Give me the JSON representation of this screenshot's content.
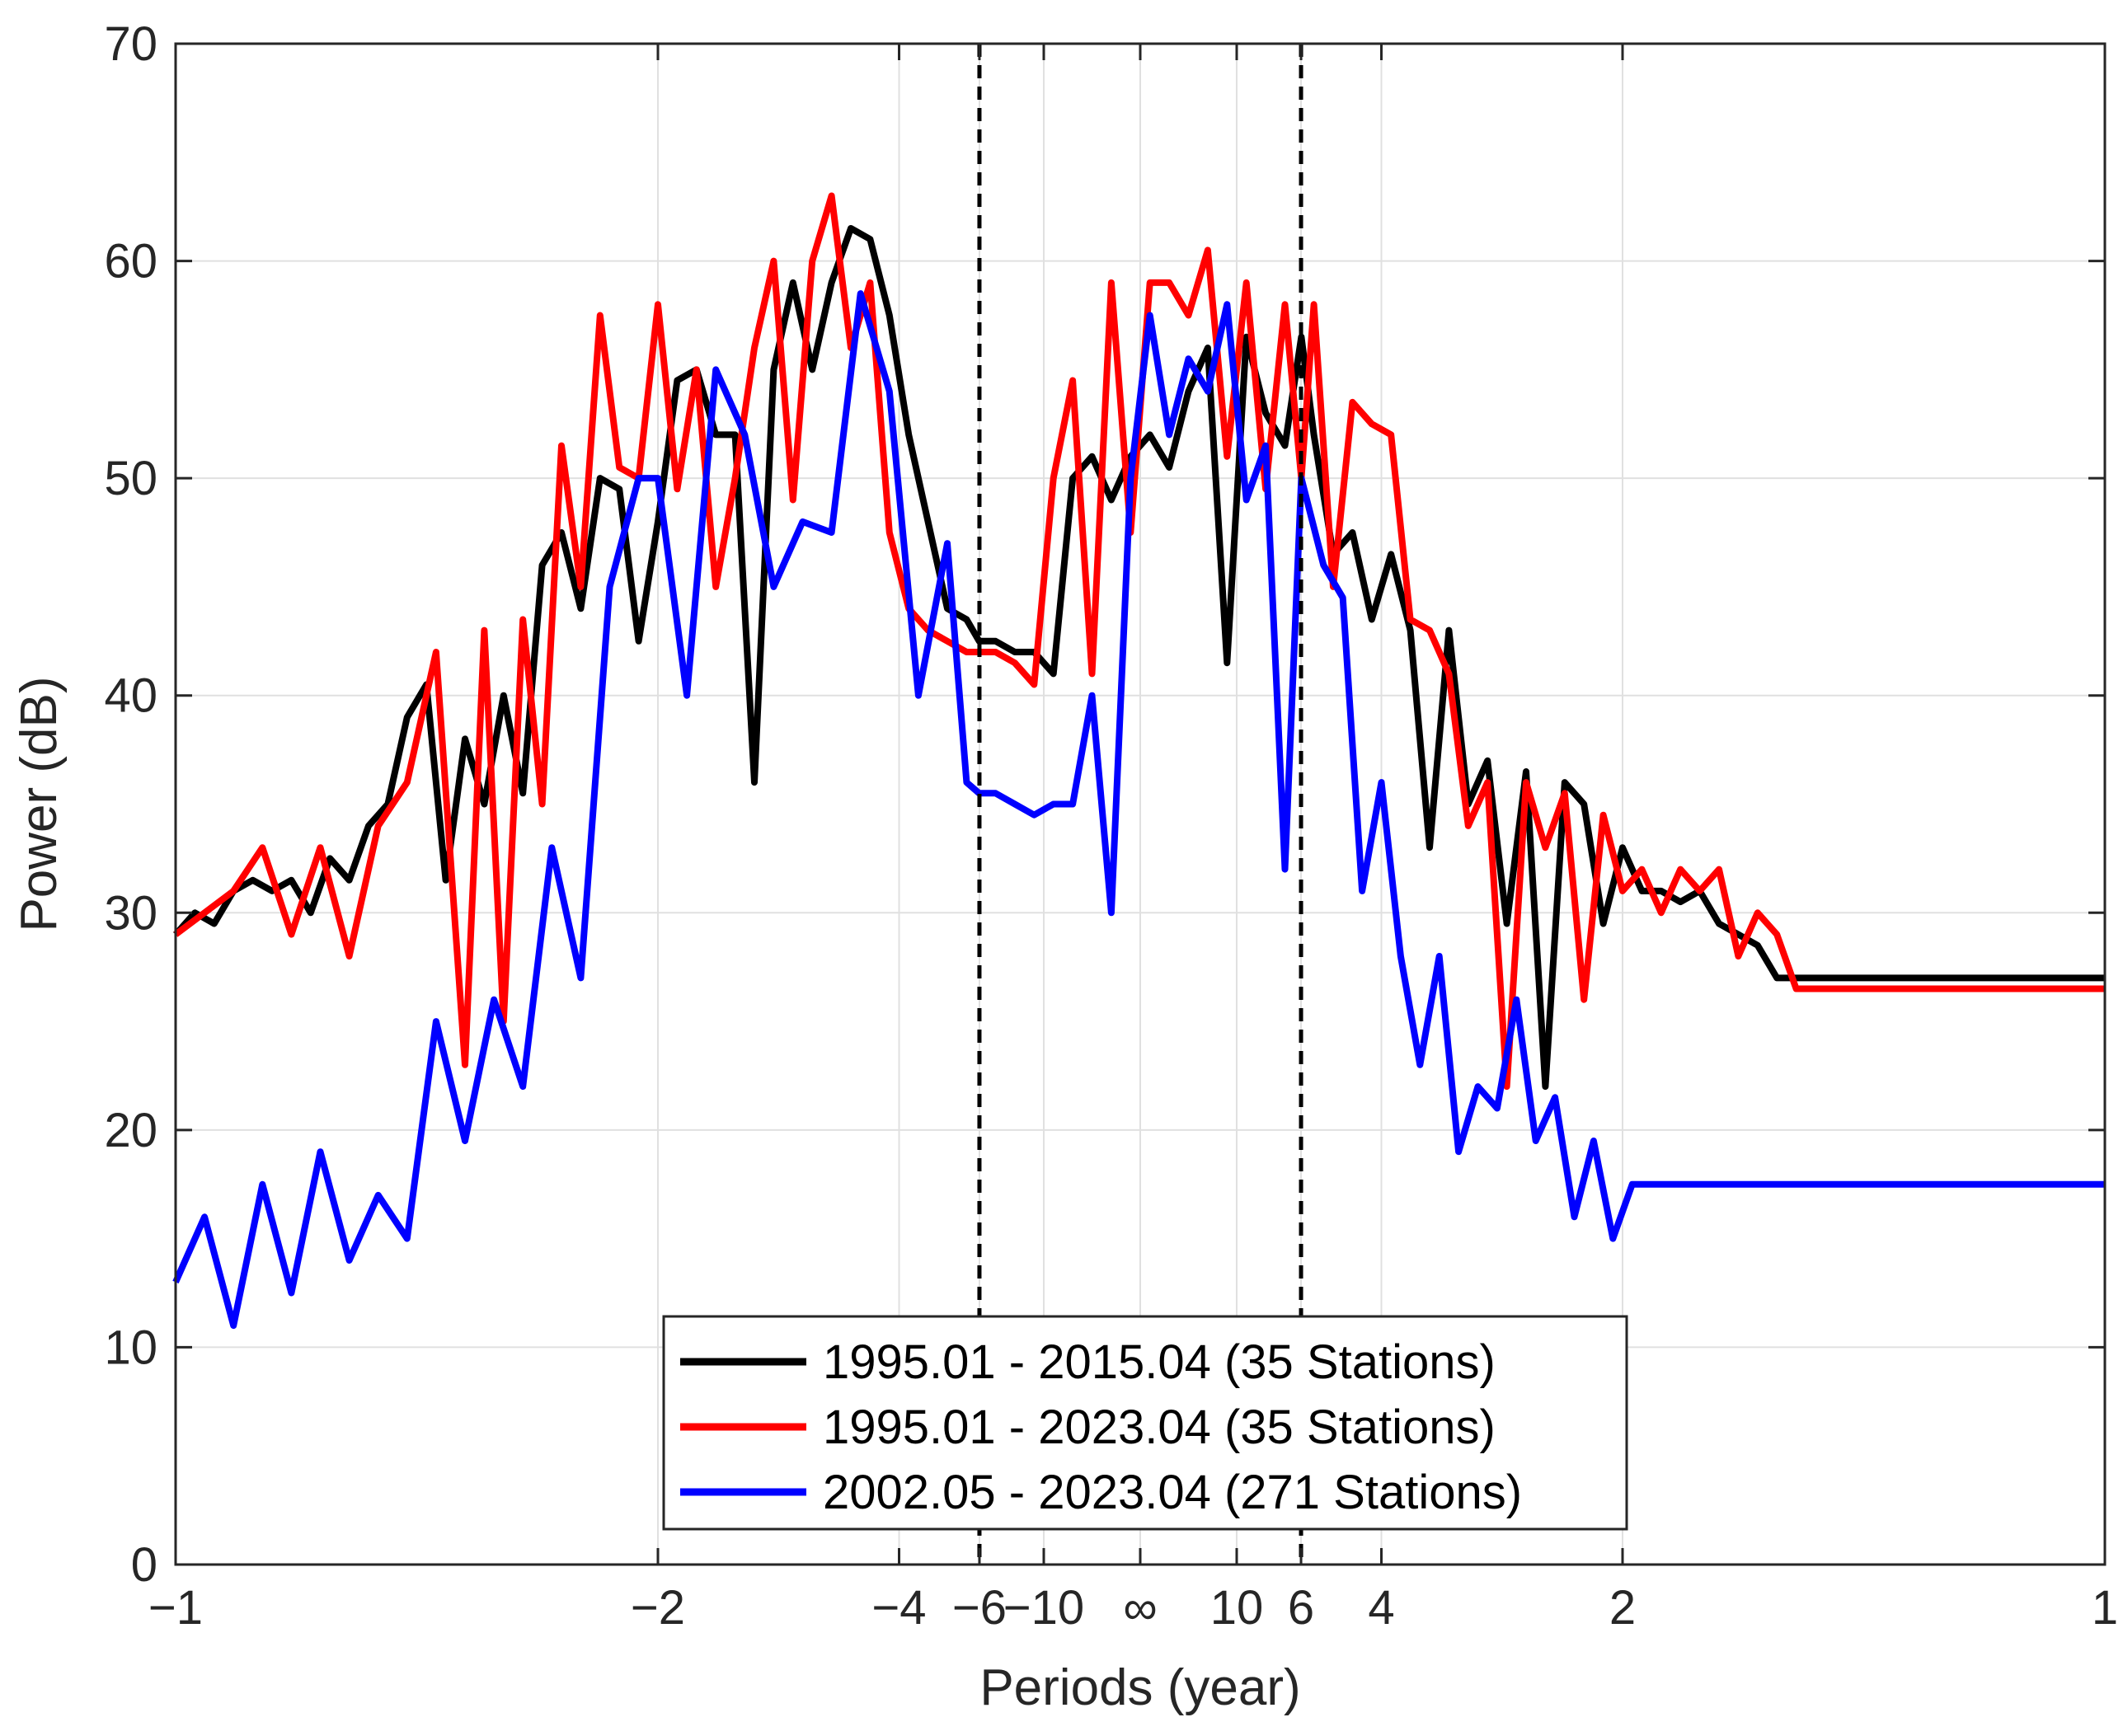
{
  "chart_data": {
    "type": "line",
    "title": "",
    "xlabel": "Periods (year)",
    "ylabel": "Power (dB)",
    "x_axis_note": "x is frequency in cycles/year; tick labels show period = 1/frequency",
    "xlim": [
      -1,
      1
    ],
    "ylim": [
      0,
      70
    ],
    "yticks": [
      0,
      10,
      20,
      30,
      40,
      50,
      60,
      70
    ],
    "ytick_labels": [
      "0",
      "10",
      "20",
      "30",
      "40",
      "50",
      "60",
      "70"
    ],
    "xticks": [
      -1,
      -0.5,
      -0.25,
      -0.1667,
      -0.1,
      0,
      0.1,
      0.1667,
      0.25,
      0.5,
      1
    ],
    "xtick_labels": [
      "−1",
      "−2",
      "−4",
      "−6",
      "−10",
      "∞",
      "10",
      "6",
      "4",
      "2",
      "1"
    ],
    "grid": true,
    "vlines": [
      -0.1667,
      0.1667
    ],
    "legend_position": "bottom-center",
    "series": [
      {
        "name": "1995.01 - 2015.04 (35 Stations)",
        "color": "#000000",
        "x": [
          -1.0,
          -0.98,
          -0.96,
          -0.94,
          -0.92,
          -0.9,
          -0.88,
          -0.86,
          -0.84,
          -0.82,
          -0.8,
          -0.78,
          -0.76,
          -0.74,
          -0.72,
          -0.7,
          -0.68,
          -0.66,
          -0.64,
          -0.62,
          -0.6,
          -0.58,
          -0.56,
          -0.54,
          -0.52,
          -0.5,
          -0.48,
          -0.46,
          -0.44,
          -0.42,
          -0.4,
          -0.38,
          -0.36,
          -0.34,
          -0.32,
          -0.3,
          -0.28,
          -0.26,
          -0.24,
          -0.22,
          -0.2,
          -0.18,
          -0.167,
          -0.15,
          -0.13,
          -0.11,
          -0.09,
          -0.07,
          -0.05,
          -0.03,
          -0.01,
          0.01,
          0.03,
          0.05,
          0.07,
          0.09,
          0.11,
          0.13,
          0.15,
          0.167,
          0.18,
          0.2,
          0.22,
          0.24,
          0.26,
          0.28,
          0.3,
          0.32,
          0.34,
          0.36,
          0.38,
          0.4,
          0.42,
          0.44,
          0.46,
          0.48,
          0.5,
          0.52,
          0.54,
          0.56,
          0.58,
          0.6,
          0.62,
          0.64,
          0.66,
          0.68,
          0.7,
          0.72,
          0.74,
          0.76,
          0.78,
          0.8,
          0.82,
          0.84,
          0.86,
          0.88,
          0.9,
          0.92,
          0.94,
          0.96,
          0.98,
          1.0
        ],
        "values": [
          29,
          30,
          29.5,
          31,
          31.5,
          31,
          31.5,
          30,
          32.5,
          31.5,
          34,
          35,
          39,
          40.5,
          31.5,
          38,
          35,
          40,
          35.5,
          46,
          47.5,
          44,
          50,
          49.5,
          42.5,
          48,
          54.5,
          55,
          52,
          52,
          36,
          55,
          59,
          55,
          59,
          61.5,
          61,
          57.5,
          52,
          48,
          44,
          43.5,
          42.5,
          42.5,
          42,
          42,
          41,
          50,
          51,
          49,
          51,
          52,
          50.5,
          54,
          56,
          41.5,
          56.5,
          53,
          51.5,
          56.5,
          52,
          46.5,
          47.5,
          43.5,
          46.5,
          43,
          33,
          43,
          35,
          37,
          29.5,
          36.5,
          22,
          36,
          35,
          29.5,
          33,
          31,
          31,
          30.5,
          31,
          29.5,
          29,
          28.5,
          27,
          27,
          27,
          27,
          27,
          27,
          27,
          27,
          27,
          27,
          27,
          27,
          27,
          27,
          27,
          27,
          27,
          27
        ]
      },
      {
        "name": "1995.01 - 2023.04 (35 Stations)",
        "color": "#ff0000",
        "x": [
          -1.0,
          -0.97,
          -0.94,
          -0.91,
          -0.88,
          -0.85,
          -0.82,
          -0.79,
          -0.76,
          -0.73,
          -0.7,
          -0.68,
          -0.66,
          -0.64,
          -0.62,
          -0.6,
          -0.58,
          -0.56,
          -0.54,
          -0.52,
          -0.5,
          -0.48,
          -0.46,
          -0.44,
          -0.42,
          -0.4,
          -0.38,
          -0.36,
          -0.34,
          -0.32,
          -0.3,
          -0.28,
          -0.26,
          -0.24,
          -0.22,
          -0.2,
          -0.18,
          -0.167,
          -0.15,
          -0.13,
          -0.11,
          -0.09,
          -0.07,
          -0.05,
          -0.03,
          -0.01,
          0.01,
          0.03,
          0.05,
          0.07,
          0.09,
          0.11,
          0.13,
          0.15,
          0.167,
          0.18,
          0.2,
          0.22,
          0.24,
          0.26,
          0.28,
          0.3,
          0.32,
          0.34,
          0.36,
          0.38,
          0.4,
          0.42,
          0.44,
          0.46,
          0.48,
          0.5,
          0.52,
          0.54,
          0.56,
          0.58,
          0.6,
          0.62,
          0.64,
          0.66,
          0.68,
          0.7,
          0.72,
          0.74,
          0.76,
          0.78,
          0.8,
          0.82,
          0.84,
          0.86,
          0.88,
          0.9,
          0.92,
          0.94,
          0.96,
          0.98,
          1.0
        ],
        "values": [
          29,
          30,
          31,
          33,
          29,
          33,
          28,
          34,
          36,
          42,
          23,
          43,
          25,
          43.5,
          35,
          51.5,
          45,
          57.5,
          50.5,
          50,
          58,
          49.5,
          55,
          45,
          50,
          56,
          60,
          49,
          60,
          63,
          56,
          59,
          47.5,
          44,
          43,
          42.5,
          42,
          42,
          42,
          41.5,
          40.5,
          50,
          54.5,
          41,
          59,
          47.5,
          59,
          59,
          57.5,
          60.5,
          51,
          59,
          49.5,
          58,
          50,
          58,
          45,
          53.5,
          52.5,
          52,
          43.5,
          43,
          41,
          34,
          36,
          22,
          36,
          33,
          35.5,
          26,
          34.5,
          31,
          32,
          30,
          32,
          31,
          32,
          28,
          30,
          29,
          26.5,
          26.5,
          26.5,
          26.5,
          26.5,
          26.5,
          26.5,
          26.5,
          26.5,
          26.5,
          26.5,
          26.5,
          26.5,
          26.5,
          26.5,
          26.5,
          26.5
        ]
      },
      {
        "name": "2002.05 - 2023.04 (271 Stations)",
        "color": "#0000ff",
        "x": [
          -1.0,
          -0.97,
          -0.94,
          -0.91,
          -0.88,
          -0.85,
          -0.82,
          -0.79,
          -0.76,
          -0.73,
          -0.7,
          -0.67,
          -0.64,
          -0.61,
          -0.58,
          -0.55,
          -0.52,
          -0.5,
          -0.47,
          -0.44,
          -0.41,
          -0.38,
          -0.35,
          -0.32,
          -0.29,
          -0.26,
          -0.23,
          -0.2,
          -0.18,
          -0.167,
          -0.15,
          -0.13,
          -0.11,
          -0.09,
          -0.07,
          -0.05,
          -0.03,
          -0.01,
          0.01,
          0.03,
          0.05,
          0.07,
          0.09,
          0.11,
          0.13,
          0.15,
          0.167,
          0.19,
          0.21,
          0.23,
          0.25,
          0.27,
          0.29,
          0.31,
          0.33,
          0.35,
          0.37,
          0.39,
          0.41,
          0.43,
          0.45,
          0.47,
          0.49,
          0.51,
          0.53,
          0.55,
          0.57,
          0.59,
          0.61,
          0.63,
          0.65,
          0.67,
          0.69,
          0.71,
          0.73,
          0.75,
          0.77,
          0.79,
          0.81,
          0.83,
          0.85,
          0.87,
          0.89,
          0.91,
          0.93,
          0.95,
          0.97,
          1.0
        ],
        "values": [
          13,
          16,
          11,
          17.5,
          12.5,
          19,
          14,
          17,
          15,
          25,
          19.5,
          26,
          22,
          33,
          27,
          45,
          50,
          50,
          40,
          55,
          52,
          45,
          48,
          47.5,
          58.5,
          54,
          40,
          47,
          36,
          35.5,
          35.5,
          35,
          34.5,
          35,
          35,
          40,
          30,
          50,
          57.5,
          52,
          55.5,
          54,
          58,
          49,
          51.5,
          32,
          50,
          46,
          44.5,
          31,
          36,
          28,
          23,
          28,
          19,
          22,
          21,
          26,
          19.5,
          21.5,
          16,
          19.5,
          15,
          17.5,
          17.5,
          17.5,
          17.5,
          17.5,
          17.5,
          17.5,
          17.5,
          17.5,
          17.5,
          17.5,
          17.5,
          17.5,
          17.5,
          17.5,
          17.5,
          17.5,
          17.5,
          17.5,
          17.5,
          17.5,
          17.5,
          17.5,
          17.5,
          17.5
        ]
      }
    ]
  }
}
